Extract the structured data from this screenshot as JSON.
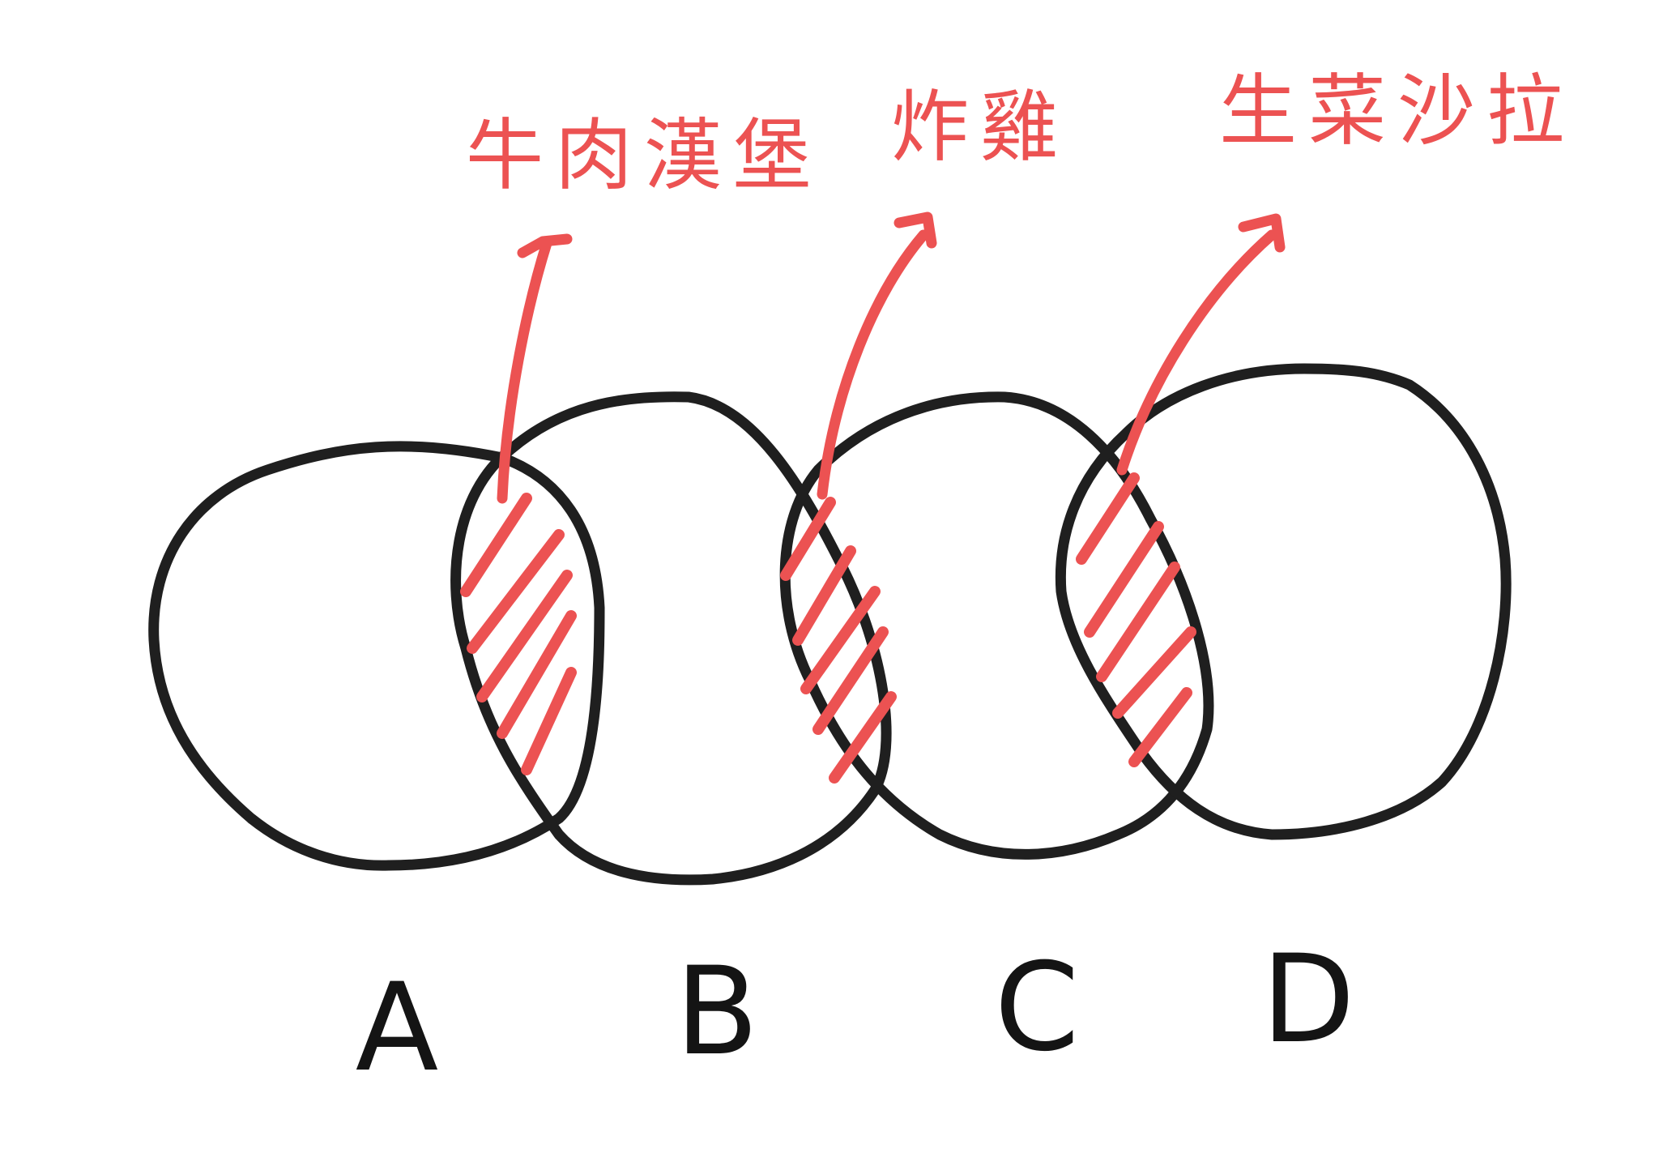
{
  "sets": [
    {
      "id": "A",
      "label": "A"
    },
    {
      "id": "B",
      "label": "B"
    },
    {
      "id": "C",
      "label": "C"
    },
    {
      "id": "D",
      "label": "D"
    }
  ],
  "intersections": [
    {
      "between": [
        "A",
        "B"
      ],
      "label": "牛肉漢堡"
    },
    {
      "between": [
        "B",
        "C"
      ],
      "label": "炸雞"
    },
    {
      "between": [
        "C",
        "D"
      ],
      "label": "生菜沙拉"
    }
  ],
  "colors": {
    "outline": "#1f1f1f",
    "highlight": "#ec5252",
    "background": "#ffffff"
  }
}
